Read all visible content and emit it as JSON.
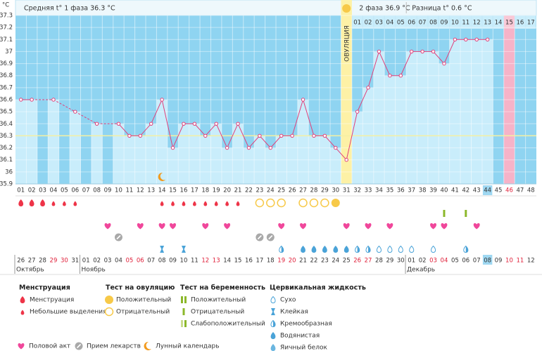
{
  "chart_data": {
    "type": "line",
    "y_unit": "°C",
    "header": {
      "phase1": "Средняя t° 1 фаза 36.3 °C",
      "phase2": "2 фаза 36.9 °C",
      "diff": "Разница t° 0.6 °C"
    },
    "ylim": [
      35.9,
      37.3
    ],
    "yticks": [
      35.9,
      36,
      36.1,
      36.2,
      36.3,
      36.4,
      36.5,
      36.6,
      36.7,
      36.8,
      36.9,
      37,
      37.1,
      37.2,
      37.3
    ],
    "grid": true,
    "color": "#e0407a",
    "coverline": 36.3,
    "ovulation": {
      "label": "ОВУЛЯЦИЯ",
      "day": "31"
    },
    "today": "44",
    "predicted_period_day": "46",
    "days": [
      "01",
      "02",
      "03",
      "04",
      "05",
      "06",
      "07",
      "08",
      "09",
      "10",
      "11",
      "12",
      "13",
      "14",
      "15",
      "16",
      "17",
      "18",
      "19",
      "20",
      "21",
      "22",
      "23",
      "24",
      "25",
      "26",
      "27",
      "28",
      "29",
      "30",
      "31",
      "32",
      "33",
      "34",
      "35",
      "36",
      "37",
      "38",
      "39",
      "40",
      "41",
      "42",
      "43",
      "44",
      "45",
      "46",
      "47",
      "48"
    ],
    "values": [
      36.6,
      36.6,
      null,
      36.6,
      null,
      36.5,
      null,
      36.4,
      null,
      36.4,
      36.3,
      36.3,
      36.4,
      36.6,
      36.2,
      36.4,
      36.4,
      36.3,
      36.4,
      36.2,
      36.4,
      36.2,
      36.3,
      36.2,
      36.3,
      36.3,
      36.6,
      36.3,
      36.3,
      36.2,
      36.1,
      36.5,
      36.7,
      37,
      36.8,
      36.8,
      37,
      37,
      37,
      36.9,
      37.1,
      37.1,
      37.1,
      37.1,
      null,
      null,
      null,
      null
    ],
    "luteal_days": [
      null,
      null,
      null,
      null,
      null,
      null,
      null,
      null,
      null,
      null,
      null,
      null,
      null,
      null,
      null,
      null,
      null,
      null,
      null,
      null,
      null,
      null,
      null,
      null,
      null,
      null,
      null,
      null,
      null,
      null,
      null,
      "01",
      "02",
      "03",
      "04",
      "05",
      "06",
      "07",
      "08",
      "09",
      "10",
      "11",
      "12",
      "13",
      "14",
      "15",
      "16",
      "17"
    ],
    "dates": [
      "26",
      "27",
      "28",
      "29",
      "30",
      "31",
      "01",
      "02",
      "03",
      "04",
      "05",
      "06",
      "07",
      "08",
      "09",
      "10",
      "11",
      "12",
      "13",
      "14",
      "15",
      "16",
      "17",
      "18",
      "19",
      "20",
      "21",
      "22",
      "23",
      "24",
      "25",
      "26",
      "27",
      "28",
      "29",
      "30",
      "01",
      "02",
      "03",
      "04",
      "05",
      "06",
      "07",
      "08",
      "09",
      "10",
      "11",
      "12"
    ],
    "weekend": [
      false,
      false,
      false,
      true,
      true,
      false,
      false,
      false,
      false,
      false,
      true,
      true,
      false,
      false,
      false,
      false,
      false,
      true,
      true,
      false,
      false,
      false,
      false,
      false,
      true,
      true,
      false,
      false,
      false,
      false,
      false,
      true,
      true,
      false,
      false,
      false,
      false,
      false,
      true,
      true,
      false,
      false,
      false,
      false,
      false,
      true,
      true,
      false
    ],
    "months": [
      "Октябрь",
      null,
      null,
      null,
      null,
      null,
      "Ноябрь",
      null,
      null,
      null,
      null,
      null,
      null,
      null,
      null,
      null,
      null,
      null,
      null,
      null,
      null,
      null,
      null,
      null,
      null,
      null,
      null,
      null,
      null,
      null,
      null,
      null,
      null,
      null,
      null,
      null,
      "Декабрь",
      null,
      null,
      null,
      null,
      null,
      null,
      null,
      null,
      null,
      null,
      null
    ],
    "moon": [
      null,
      null,
      null,
      null,
      null,
      null,
      null,
      null,
      null,
      null,
      null,
      null,
      null,
      "moon",
      null,
      null,
      null,
      null,
      null,
      null,
      null,
      null,
      null,
      null,
      null,
      null,
      null,
      null,
      null,
      null,
      null,
      null,
      null,
      null,
      null,
      null,
      null,
      null,
      null,
      null,
      null,
      null,
      null,
      null,
      null,
      null,
      null,
      null
    ],
    "symbol_rows": [
      [
        "M",
        "M",
        "M",
        "S",
        "S",
        "S",
        null,
        null,
        null,
        null,
        null,
        null,
        null,
        "S",
        "S",
        "S",
        "S",
        "S",
        "S",
        "S",
        "S",
        null,
        "O-",
        "O-",
        "O-",
        null,
        "O-",
        "O-",
        "O-",
        "O+",
        null,
        null,
        null,
        null,
        null,
        null,
        null,
        null,
        null,
        null,
        null,
        null,
        null,
        null,
        null,
        null,
        null,
        null
      ],
      [
        null,
        null,
        null,
        null,
        null,
        null,
        null,
        null,
        null,
        null,
        null,
        null,
        null,
        null,
        null,
        null,
        null,
        null,
        null,
        null,
        null,
        null,
        null,
        null,
        null,
        null,
        null,
        null,
        null,
        null,
        null,
        null,
        null,
        null,
        null,
        null,
        null,
        null,
        null,
        "P-",
        null,
        "P-",
        null,
        null,
        null,
        null,
        null,
        null
      ],
      [
        null,
        null,
        null,
        null,
        null,
        null,
        null,
        null,
        "H",
        null,
        null,
        "H",
        null,
        "H",
        "H",
        null,
        null,
        "H",
        null,
        "H",
        null,
        null,
        null,
        null,
        "H",
        null,
        "H",
        null,
        null,
        null,
        "H",
        null,
        "H",
        null,
        "H",
        null,
        null,
        null,
        "H",
        "H",
        null,
        null,
        "H",
        null,
        null,
        null,
        null,
        null
      ],
      [
        null,
        null,
        null,
        null,
        null,
        null,
        null,
        null,
        null,
        "D",
        null,
        null,
        null,
        null,
        null,
        null,
        null,
        null,
        null,
        null,
        null,
        null,
        "D",
        "D",
        null,
        null,
        null,
        null,
        null,
        null,
        null,
        null,
        null,
        null,
        null,
        null,
        null,
        null,
        null,
        null,
        null,
        null,
        null,
        null,
        null,
        null,
        null,
        null
      ],
      [
        null,
        null,
        null,
        null,
        null,
        null,
        null,
        null,
        null,
        null,
        null,
        null,
        null,
        "sticky",
        null,
        "sticky",
        null,
        null,
        null,
        null,
        null,
        null,
        null,
        null,
        "creamy",
        null,
        "watery",
        "watery",
        "watery",
        "watery",
        "watery",
        "creamy",
        "creamy",
        "dry",
        "dry",
        "dry",
        "dry",
        null,
        "dry",
        null,
        null,
        "creamy",
        null,
        null,
        null,
        null,
        null,
        null
      ]
    ]
  },
  "legend": {
    "groups": [
      {
        "title": "Менструация",
        "items": [
          {
            "icon": "M",
            "label": "Менструация"
          },
          {
            "icon": "S",
            "label": "Небольшие выделения"
          }
        ]
      },
      {
        "title": "Тест на овуляцию",
        "items": [
          {
            "icon": "O+",
            "label": "Положительный"
          },
          {
            "icon": "O-",
            "label": "Отрицательный"
          }
        ]
      },
      {
        "title": "Тест на беременность",
        "items": [
          {
            "icon": "P+",
            "label": "Положительный"
          },
          {
            "icon": "P-",
            "label": "Отрицательный"
          },
          {
            "icon": "P~",
            "label": "Слабоположительный"
          }
        ]
      },
      {
        "title": "Цервикальная жидкость",
        "items": [
          {
            "icon": "dry",
            "label": "Сухо"
          },
          {
            "icon": "sticky",
            "label": "Клейкая"
          },
          {
            "icon": "creamy",
            "label": "Кремообразная"
          },
          {
            "icon": "watery",
            "label": "Водянистая"
          },
          {
            "icon": "egg",
            "label": "Яичный белок"
          }
        ]
      }
    ],
    "extra": [
      {
        "icon": "H",
        "label": "Половой акт"
      },
      {
        "icon": "D",
        "label": "Прием лекарств"
      },
      {
        "icon": "moon",
        "label": "Лунный календарь"
      }
    ]
  }
}
